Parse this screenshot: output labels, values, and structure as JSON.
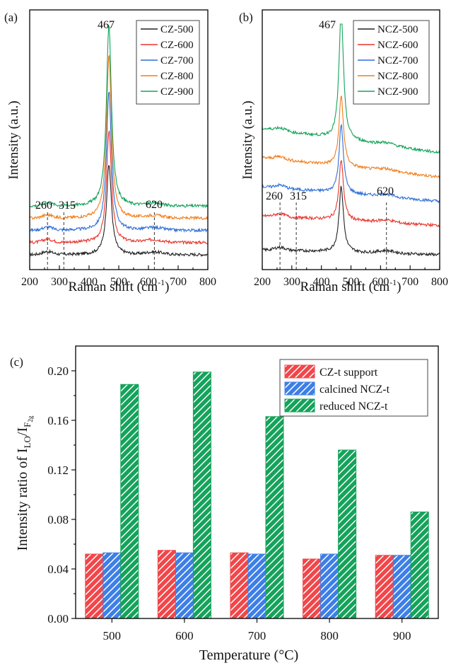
{
  "chart_data": [
    {
      "type": "line",
      "panel_label": "(a)",
      "xlabel": "Raman shift (cm",
      "xlabel_sup": "-1",
      "xlabel_end": ")",
      "ylabel": "Intensity (a.u.)",
      "xlim": [
        200,
        800
      ],
      "xticks": [
        "200",
        "300",
        "400",
        "500",
        "600",
        "700",
        "800"
      ],
      "peak_labels": [
        {
          "text": "467",
          "x": 467
        },
        {
          "text": "260",
          "x": 260
        },
        {
          "text": "315",
          "x": 315
        },
        {
          "text": "620",
          "x": 620
        }
      ],
      "dashed_lines": [
        260,
        315,
        620
      ],
      "series": [
        {
          "name": "CZ-500",
          "color": "#222222",
          "baseline": 0.05,
          "peak": 0.42
        },
        {
          "name": "CZ-600",
          "color": "#e8352c",
          "baseline": 0.1,
          "peak": 0.56
        },
        {
          "name": "CZ-700",
          "color": "#2e6fd8",
          "baseline": 0.15,
          "peak": 0.72
        },
        {
          "name": "CZ-800",
          "color": "#f07d1c",
          "baseline": 0.2,
          "peak": 0.87
        },
        {
          "name": "CZ-900",
          "color": "#14a35a",
          "baseline": 0.25,
          "peak": 1.0
        }
      ]
    },
    {
      "type": "line",
      "panel_label": "(b)",
      "xlabel": "Raman shift (cm",
      "xlabel_sup": "-1",
      "xlabel_end": ")",
      "ylabel": "Intensity (a.u.)",
      "xlim": [
        200,
        800
      ],
      "xticks": [
        "200",
        "300",
        "400",
        "500",
        "600",
        "700",
        "800"
      ],
      "peak_labels": [
        {
          "text": "467",
          "x": 467
        },
        {
          "text": "260",
          "x": 260
        },
        {
          "text": "315",
          "x": 315
        },
        {
          "text": "620",
          "x": 620
        }
      ],
      "dashed_lines": [
        260,
        315,
        620
      ],
      "series": [
        {
          "name": "NCZ-500",
          "color": "#222222",
          "baseline": 0.05,
          "peak": 0.32
        },
        {
          "name": "NCZ-600",
          "color": "#e8352c",
          "baseline": 0.17,
          "peak": 0.42
        },
        {
          "name": "NCZ-700",
          "color": "#2e6fd8",
          "baseline": 0.27,
          "peak": 0.55
        },
        {
          "name": "NCZ-800",
          "color": "#f07d1c",
          "baseline": 0.37,
          "peak": 0.66
        },
        {
          "name": "NCZ-900",
          "color": "#14a35a",
          "baseline": 0.47,
          "peak": 1.0
        }
      ]
    },
    {
      "type": "bar",
      "panel_label": "(c)",
      "xlabel": "Temperature (°C)",
      "ylabel_main": "Intensity ratio of I",
      "ylabel_sub1": "LO",
      "ylabel_mid": "/I",
      "ylabel_sub2": "F",
      "ylabel_sub3": "2g",
      "categories": [
        "500",
        "600",
        "700",
        "800",
        "900"
      ],
      "ylim": [
        0,
        0.22
      ],
      "yticks": [
        "0.00",
        "0.04",
        "0.08",
        "0.12",
        "0.16",
        "0.20"
      ],
      "series": [
        {
          "name": "CZ-t support",
          "color": "#f0474a",
          "values": [
            0.052,
            0.055,
            0.053,
            0.048,
            0.051
          ]
        },
        {
          "name": "calcined NCZ-t",
          "color": "#3d7fe6",
          "values": [
            0.053,
            0.053,
            0.052,
            0.052,
            0.051
          ]
        },
        {
          "name": "reduced NCZ-t",
          "color": "#14a35a",
          "values": [
            0.189,
            0.199,
            0.163,
            0.136,
            0.086
          ]
        }
      ]
    }
  ]
}
